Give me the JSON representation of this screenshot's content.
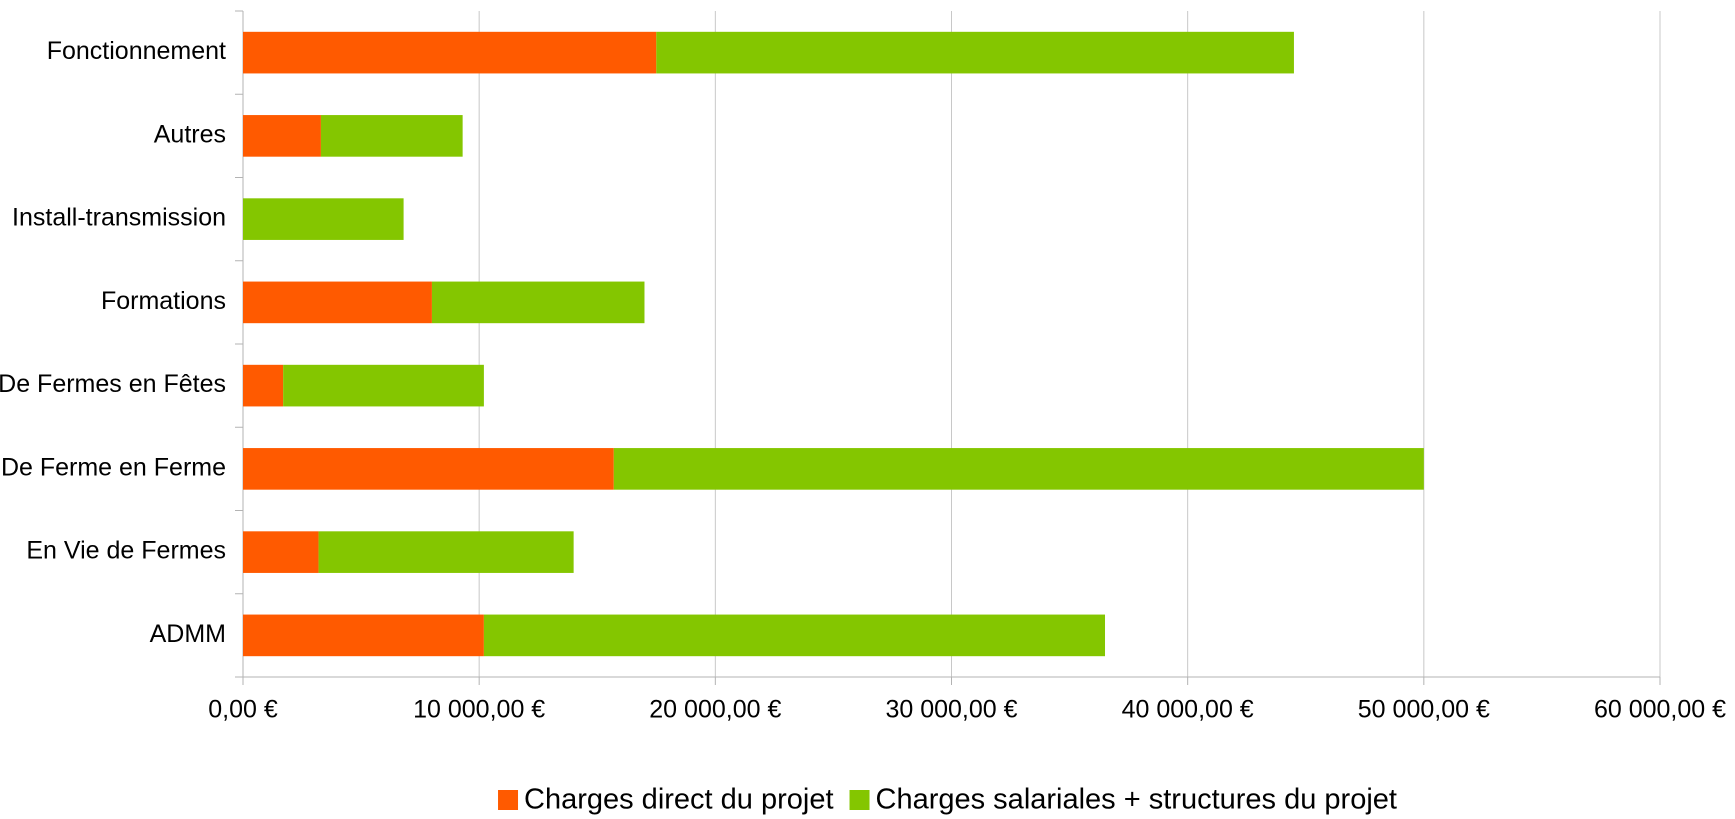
{
  "chart_data": {
    "type": "stacked-bar-horizontal",
    "categories": [
      "ADMM",
      "En Vie de Fermes",
      "De Ferme en Ferme",
      "De Fermes en Fêtes",
      "Formations",
      "Install-transmission",
      "Autres",
      "Fonctionnement"
    ],
    "series": [
      {
        "name": "Charges direct du projet",
        "color": "#ff5a00",
        "values": [
          10200,
          3200,
          15700,
          1700,
          8000,
          0,
          3300,
          17500
        ]
      },
      {
        "name": "Charges salariales + structures du projet",
        "color": "#84c600",
        "values": [
          26300,
          10800,
          34300,
          8500,
          9000,
          6800,
          6000,
          27000
        ]
      }
    ],
    "xlim": [
      0,
      60000
    ],
    "xticks": [
      {
        "value": 0,
        "label": "0,00 €"
      },
      {
        "value": 10000,
        "label": "10 000,00 €"
      },
      {
        "value": 20000,
        "label": "20 000,00 €"
      },
      {
        "value": 30000,
        "label": "30 000,00 €"
      },
      {
        "value": 40000,
        "label": "40 000,00 €"
      },
      {
        "value": 50000,
        "label": "50 000,00 €"
      },
      {
        "value": 60000,
        "label": "60 000,00 €"
      }
    ],
    "grid": true,
    "legend": "bottom"
  }
}
